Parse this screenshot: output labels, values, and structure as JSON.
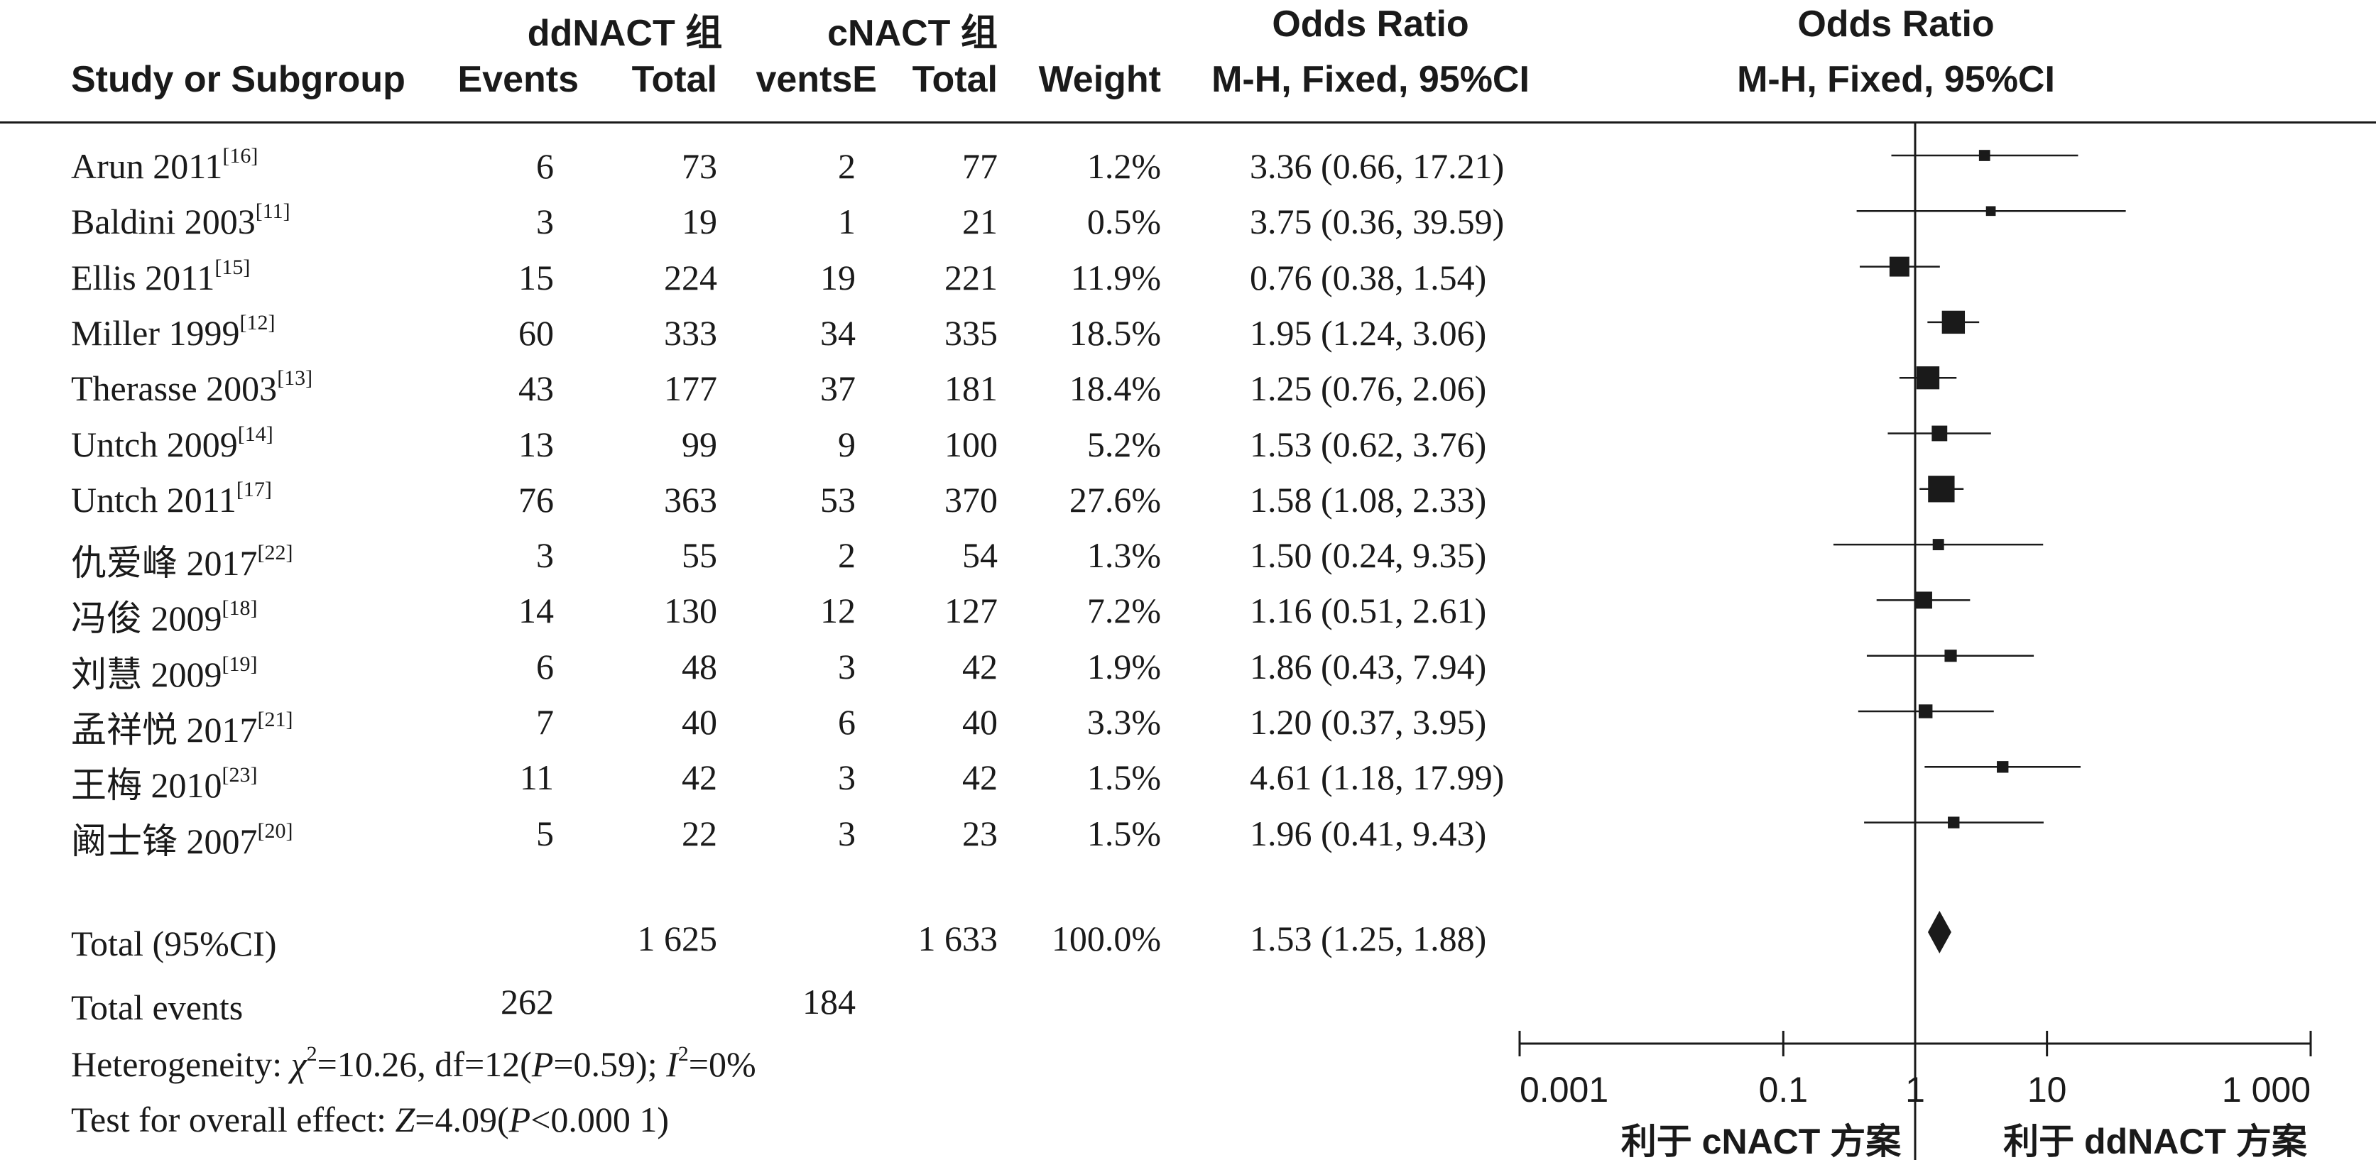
{
  "headers": {
    "group1": "ddNACT 组",
    "group2": "cNACT 组",
    "odds_ratio_table": "Odds Ratio",
    "odds_ratio_plot": "Odds Ratio",
    "study": "Study or Subgroup",
    "events1": "Events",
    "total1": "Total",
    "events2": "ventsE",
    "total2": "Total",
    "weight": "Weight",
    "method_table": "M-H, Fixed, 95%CI",
    "method_plot": "M-H, Fixed, 95%CI"
  },
  "studies": [
    {
      "name": "Arun 2011",
      "ref": "[16]",
      "e1": "6",
      "t1": "73",
      "e2": "2",
      "t2": "77",
      "weight": "1.2%",
      "or_text": "3.36 (0.66, 17.21)"
    },
    {
      "name": "Baldini 2003",
      "ref": "[11]",
      "e1": "3",
      "t1": "19",
      "e2": "1",
      "t2": "21",
      "weight": "0.5%",
      "or_text": "3.75 (0.36, 39.59)"
    },
    {
      "name": "Ellis 2011",
      "ref": "[15]",
      "e1": "15",
      "t1": "224",
      "e2": "19",
      "t2": "221",
      "weight": "11.9%",
      "or_text": "0.76 (0.38, 1.54)"
    },
    {
      "name": "Miller 1999",
      "ref": "[12]",
      "e1": "60",
      "t1": "333",
      "e2": "34",
      "t2": "335",
      "weight": "18.5%",
      "or_text": "1.95 (1.24, 3.06)"
    },
    {
      "name": "Therasse 2003",
      "ref": "[13]",
      "e1": "43",
      "t1": "177",
      "e2": "37",
      "t2": "181",
      "weight": "18.4%",
      "or_text": "1.25 (0.76, 2.06)"
    },
    {
      "name": "Untch 2009",
      "ref": "[14]",
      "e1": "13",
      "t1": "99",
      "e2": "9",
      "t2": "100",
      "weight": "5.2%",
      "or_text": "1.53 (0.62, 3.76)"
    },
    {
      "name": "Untch 2011",
      "ref": "[17]",
      "e1": "76",
      "t1": "363",
      "e2": "53",
      "t2": "370",
      "weight": "27.6%",
      "or_text": "1.58 (1.08, 2.33)"
    },
    {
      "name": "仇爱峰 2017",
      "ref": "[22]",
      "e1": "3",
      "t1": "55",
      "e2": "2",
      "t2": "54",
      "weight": "1.3%",
      "or_text": "1.50 (0.24, 9.35)"
    },
    {
      "name": "冯俊 2009",
      "ref": "[18]",
      "e1": "14",
      "t1": "130",
      "e2": "12",
      "t2": "127",
      "weight": "7.2%",
      "or_text": "1.16 (0.51, 2.61)"
    },
    {
      "name": "刘慧 2009",
      "ref": "[19]",
      "e1": "6",
      "t1": "48",
      "e2": "3",
      "t2": "42",
      "weight": "1.9%",
      "or_text": "1.86 (0.43, 7.94)"
    },
    {
      "name": "孟祥悦 2017",
      "ref": "[21]",
      "e1": "7",
      "t1": "40",
      "e2": "6",
      "t2": "40",
      "weight": "3.3%",
      "or_text": "1.20 (0.37, 3.95)"
    },
    {
      "name": "王梅 2010",
      "ref": "[23]",
      "e1": "11",
      "t1": "42",
      "e2": "3",
      "t2": "42",
      "weight": "1.5%",
      "or_text": "4.61 (1.18, 17.99)"
    },
    {
      "name": "阚士锋 2007",
      "ref": "[20]",
      "e1": "5",
      "t1": "22",
      "e2": "3",
      "t2": "23",
      "weight": "1.5%",
      "or_text": "1.96 (0.41, 9.43)"
    }
  ],
  "total": {
    "label": "Total (95%CI)",
    "t1": "1 625",
    "t2": "1 633",
    "weight": "100.0%",
    "or_text": "1.53 (1.25, 1.88)"
  },
  "total_events": {
    "label": "Total events",
    "e1": "262",
    "e2": "184"
  },
  "heterogeneity": {
    "prefix": "Heterogeneity: ",
    "chi": "χ",
    "sq1": "2",
    "mid": "=10.26, df=12(",
    "p": "P",
    "mid2": "=0.59); ",
    "i": "I",
    "sq2": "2",
    "suffix": "=0%"
  },
  "overall_effect": {
    "prefix": "Test for overall effect: ",
    "z": "Z",
    "mid": "=4.09(",
    "p": "P",
    "suffix": "<0.000 1)"
  },
  "axis": {
    "tick_labels": [
      "0.001",
      "0.1",
      "1",
      "10",
      "1 000"
    ],
    "favours_left": "利于 cNACT 方案",
    "favours_right": "利于 ddNACT 方案"
  },
  "chart_data": {
    "type": "forest",
    "scale": "log",
    "xlim": [
      0.001,
      1000
    ],
    "ticks": [
      0.001,
      0.1,
      1,
      10,
      1000
    ],
    "reference_line": 1,
    "studies": [
      {
        "study": "Arun 2011",
        "or": 3.36,
        "lo": 0.66,
        "hi": 17.21,
        "weight": 1.2
      },
      {
        "study": "Baldini 2003",
        "or": 3.75,
        "lo": 0.36,
        "hi": 39.59,
        "weight": 0.5
      },
      {
        "study": "Ellis 2011",
        "or": 0.76,
        "lo": 0.38,
        "hi": 1.54,
        "weight": 11.9
      },
      {
        "study": "Miller 1999",
        "or": 1.95,
        "lo": 1.24,
        "hi": 3.06,
        "weight": 18.5
      },
      {
        "study": "Therasse 2003",
        "or": 1.25,
        "lo": 0.76,
        "hi": 2.06,
        "weight": 18.4
      },
      {
        "study": "Untch 2009",
        "or": 1.53,
        "lo": 0.62,
        "hi": 3.76,
        "weight": 5.2
      },
      {
        "study": "Untch 2011",
        "or": 1.58,
        "lo": 1.08,
        "hi": 2.33,
        "weight": 27.6
      },
      {
        "study": "仇爱峰 2017",
        "or": 1.5,
        "lo": 0.24,
        "hi": 9.35,
        "weight": 1.3
      },
      {
        "study": "冯俊 2009",
        "or": 1.16,
        "lo": 0.51,
        "hi": 2.61,
        "weight": 7.2
      },
      {
        "study": "刘慧 2009",
        "or": 1.86,
        "lo": 0.43,
        "hi": 7.94,
        "weight": 1.9
      },
      {
        "study": "孟祥悦 2017",
        "or": 1.2,
        "lo": 0.37,
        "hi": 3.95,
        "weight": 3.3
      },
      {
        "study": "王梅 2010",
        "or": 4.61,
        "lo": 1.18,
        "hi": 17.99,
        "weight": 1.5
      },
      {
        "study": "阚士锋 2007",
        "or": 1.96,
        "lo": 0.41,
        "hi": 9.43,
        "weight": 1.5
      }
    ],
    "overall": {
      "or": 1.53,
      "lo": 1.25,
      "hi": 1.88
    }
  }
}
